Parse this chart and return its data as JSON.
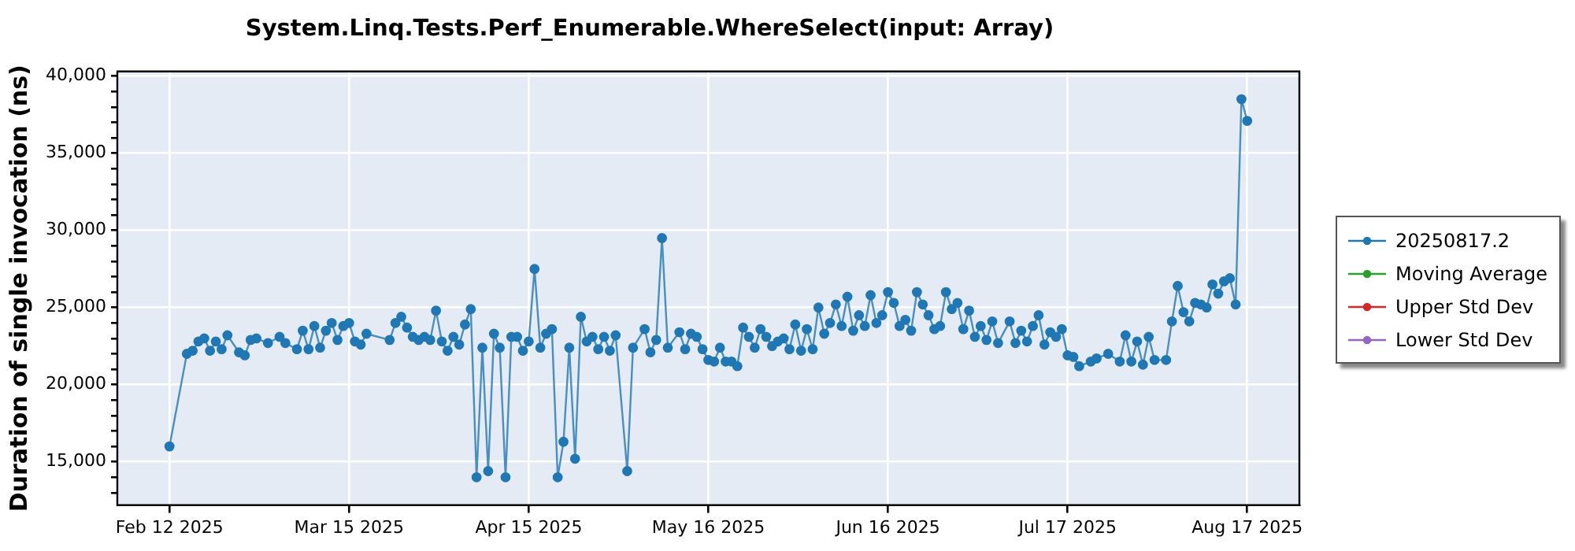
{
  "chart_data": {
    "type": "line",
    "title": "System.Linq.Tests.Perf_Enumerable.WhereSelect(input: Array)",
    "ylabel": "Duration of single invocation (ns)",
    "x": [
      "2025-02-12",
      "2025-02-15",
      "2025-02-16",
      "2025-02-17",
      "2025-02-18",
      "2025-02-19",
      "2025-02-20",
      "2025-02-21",
      "2025-02-22",
      "2025-02-24",
      "2025-02-25",
      "2025-02-26",
      "2025-02-27",
      "2025-03-01",
      "2025-03-03",
      "2025-03-04",
      "2025-03-06",
      "2025-03-07",
      "2025-03-08",
      "2025-03-09",
      "2025-03-10",
      "2025-03-11",
      "2025-03-12",
      "2025-03-13",
      "2025-03-14",
      "2025-03-15",
      "2025-03-16",
      "2025-03-17",
      "2025-03-18",
      "2025-03-22",
      "2025-03-23",
      "2025-03-24",
      "2025-03-25",
      "2025-03-26",
      "2025-03-27",
      "2025-03-28",
      "2025-03-29",
      "2025-03-30",
      "2025-03-31",
      "2025-04-01",
      "2025-04-02",
      "2025-04-03",
      "2025-04-04",
      "2025-04-05",
      "2025-04-06",
      "2025-04-07",
      "2025-04-08",
      "2025-04-09",
      "2025-04-10",
      "2025-04-11",
      "2025-04-12",
      "2025-04-13",
      "2025-04-14",
      "2025-04-15",
      "2025-04-16",
      "2025-04-17",
      "2025-04-18",
      "2025-04-19",
      "2025-04-20",
      "2025-04-21",
      "2025-04-22",
      "2025-04-23",
      "2025-04-24",
      "2025-04-25",
      "2025-04-26",
      "2025-04-27",
      "2025-04-28",
      "2025-04-29",
      "2025-04-30",
      "2025-05-02",
      "2025-05-03",
      "2025-05-05",
      "2025-05-06",
      "2025-05-07",
      "2025-05-08",
      "2025-05-09",
      "2025-05-11",
      "2025-05-12",
      "2025-05-13",
      "2025-05-14",
      "2025-05-15",
      "2025-05-16",
      "2025-05-17",
      "2025-05-18",
      "2025-05-19",
      "2025-05-20",
      "2025-05-21",
      "2025-05-22",
      "2025-05-23",
      "2025-05-24",
      "2025-05-25",
      "2025-05-26",
      "2025-05-27",
      "2025-05-28",
      "2025-05-29",
      "2025-05-30",
      "2025-05-31",
      "2025-06-01",
      "2025-06-02",
      "2025-06-03",
      "2025-06-04",
      "2025-06-05",
      "2025-06-06",
      "2025-06-07",
      "2025-06-08",
      "2025-06-09",
      "2025-06-10",
      "2025-06-11",
      "2025-06-12",
      "2025-06-13",
      "2025-06-14",
      "2025-06-15",
      "2025-06-16",
      "2025-06-17",
      "2025-06-18",
      "2025-06-19",
      "2025-06-20",
      "2025-06-21",
      "2025-06-22",
      "2025-06-23",
      "2025-06-24",
      "2025-06-25",
      "2025-06-26",
      "2025-06-27",
      "2025-06-28",
      "2025-06-29",
      "2025-06-30",
      "2025-07-01",
      "2025-07-02",
      "2025-07-03",
      "2025-07-04",
      "2025-07-05",
      "2025-07-07",
      "2025-07-08",
      "2025-07-09",
      "2025-07-10",
      "2025-07-11",
      "2025-07-12",
      "2025-07-13",
      "2025-07-14",
      "2025-07-15",
      "2025-07-16",
      "2025-07-17",
      "2025-07-18",
      "2025-07-19",
      "2025-07-21",
      "2025-07-22",
      "2025-07-24",
      "2025-07-26",
      "2025-07-27",
      "2025-07-28",
      "2025-07-29",
      "2025-07-30",
      "2025-07-31",
      "2025-08-01",
      "2025-08-03",
      "2025-08-04",
      "2025-08-05",
      "2025-08-06",
      "2025-08-07",
      "2025-08-08",
      "2025-08-09",
      "2025-08-10",
      "2025-08-11",
      "2025-08-12",
      "2025-08-13",
      "2025-08-14",
      "2025-08-15",
      "2025-08-16",
      "2025-08-17"
    ],
    "series": [
      {
        "name": "20250817.2",
        "color": "#1f77b4",
        "values": [
          16000,
          22000,
          22200,
          22800,
          23000,
          22200,
          22800,
          22300,
          23200,
          22100,
          21900,
          22900,
          23000,
          22700,
          23100,
          22700,
          22300,
          23500,
          22300,
          23800,
          22400,
          23500,
          24000,
          22900,
          23800,
          24000,
          22800,
          22600,
          23300,
          22900,
          24000,
          24400,
          23700,
          23100,
          22900,
          23100,
          22900,
          24800,
          22800,
          22200,
          23100,
          22600,
          23900,
          24900,
          14000,
          22400,
          14400,
          23300,
          22400,
          14000,
          23100,
          23100,
          22200,
          22800,
          27500,
          22400,
          23300,
          23600,
          14000,
          16300,
          22400,
          15200,
          24400,
          22800,
          23100,
          22300,
          23100,
          22200,
          23200,
          14400,
          22400,
          23600,
          22100,
          22900,
          29500,
          22400,
          23400,
          22300,
          23300,
          23100,
          22300,
          21600,
          21500,
          22400,
          21500,
          21500,
          21200,
          23700,
          23100,
          22400,
          23600,
          23100,
          22500,
          22800,
          23000,
          22300,
          23900,
          22200,
          23600,
          22300,
          25000,
          23300,
          24000,
          25200,
          23800,
          25700,
          23500,
          24500,
          23800,
          25800,
          24000,
          24500,
          26000,
          25300,
          23800,
          24200,
          23500,
          26000,
          25200,
          24500,
          23600,
          23800,
          26000,
          24900,
          25300,
          23600,
          24800,
          23100,
          23800,
          22900,
          24100,
          22700,
          24100,
          22700,
          23500,
          22800,
          23800,
          24500,
          22600,
          23400,
          23100,
          23600,
          21900,
          21800,
          21200,
          21500,
          21700,
          22000,
          21500,
          23200,
          21500,
          22800,
          21300,
          23100,
          21600,
          21600,
          24100,
          26400,
          24700,
          24100,
          25300,
          25200,
          25000,
          26500,
          25900,
          26700,
          26900,
          25200,
          38500,
          37100
        ]
      },
      {
        "name": "Moving Average",
        "color": "#2ca02c",
        "values": [
          null,
          null,
          null,
          null,
          null,
          null,
          null,
          null,
          null,
          null,
          null,
          null,
          null,
          null,
          null,
          null,
          null,
          null,
          null,
          null,
          null,
          null,
          null,
          null,
          null,
          null,
          null,
          null,
          null,
          null,
          null,
          null,
          null,
          null,
          null,
          null,
          null,
          null,
          null,
          null,
          null,
          null,
          null,
          null,
          null,
          null,
          null,
          null,
          null,
          null,
          null,
          null,
          null,
          null,
          null,
          null,
          null,
          null,
          null,
          null,
          null,
          null,
          null,
          null,
          null,
          null,
          null,
          null,
          null,
          null,
          null,
          null,
          null,
          null,
          null,
          null,
          null,
          null,
          null,
          null,
          null,
          null,
          null,
          null,
          null,
          null,
          null,
          null,
          null,
          null,
          null,
          null,
          null,
          null,
          null,
          null,
          null,
          null,
          null,
          null,
          null,
          null,
          null,
          null,
          null,
          null,
          null,
          null,
          null,
          null,
          null,
          null,
          null,
          null,
          null,
          null,
          null,
          null,
          null,
          null,
          null,
          null,
          null,
          null,
          null,
          null,
          null,
          null,
          null,
          null,
          null,
          null,
          null,
          null,
          null,
          null,
          null,
          null,
          null,
          null,
          null,
          null,
          null,
          null,
          null,
          null,
          null,
          null,
          null,
          null,
          null,
          null,
          null,
          null,
          null,
          null,
          null,
          null,
          null,
          null,
          null,
          null,
          null,
          null,
          null,
          null,
          null,
          null,
          null,
          null
        ]
      },
      {
        "name": "Upper Std Dev",
        "color": "#d62728",
        "values": [
          null,
          null,
          null,
          null,
          null,
          null,
          null,
          null,
          null,
          null,
          null,
          null,
          null,
          null,
          null,
          null,
          null,
          null,
          null,
          null,
          null,
          null,
          null,
          null,
          null,
          null,
          null,
          null,
          null,
          null,
          null,
          null,
          null,
          null,
          null,
          null,
          null,
          null,
          null,
          null,
          null,
          null,
          null,
          null,
          null,
          null,
          null,
          null,
          null,
          null,
          null,
          null,
          null,
          null,
          null,
          null,
          null,
          null,
          null,
          null,
          null,
          null,
          null,
          null,
          null,
          null,
          null,
          null,
          null,
          null,
          null,
          null,
          null,
          null,
          null,
          null,
          null,
          null,
          null,
          null,
          null,
          null,
          null,
          null,
          null,
          null,
          null,
          null,
          null,
          null,
          null,
          null,
          null,
          null,
          null,
          null,
          null,
          null,
          null,
          null,
          null,
          null,
          null,
          null,
          null,
          null,
          null,
          null,
          null,
          null,
          null,
          null,
          null,
          null,
          null,
          null,
          null,
          null,
          null,
          null,
          null,
          null,
          null,
          null,
          null,
          null,
          null,
          null,
          null,
          null,
          null,
          null,
          null,
          null,
          null,
          null,
          null,
          null,
          null,
          null,
          null,
          null,
          null,
          null,
          null,
          null,
          null,
          null,
          null,
          null,
          null,
          null,
          null,
          null,
          null,
          null,
          null,
          null,
          null,
          null,
          null,
          null,
          null,
          null,
          null,
          null,
          null,
          null,
          null,
          null
        ]
      },
      {
        "name": "Lower Std Dev",
        "color": "#9467bd",
        "values": [
          null,
          null,
          null,
          null,
          null,
          null,
          null,
          null,
          null,
          null,
          null,
          null,
          null,
          null,
          null,
          null,
          null,
          null,
          null,
          null,
          null,
          null,
          null,
          null,
          null,
          null,
          null,
          null,
          null,
          null,
          null,
          null,
          null,
          null,
          null,
          null,
          null,
          null,
          null,
          null,
          null,
          null,
          null,
          null,
          null,
          null,
          null,
          null,
          null,
          null,
          null,
          null,
          null,
          null,
          null,
          null,
          null,
          null,
          null,
          null,
          null,
          null,
          null,
          null,
          null,
          null,
          null,
          null,
          null,
          null,
          null,
          null,
          null,
          null,
          null,
          null,
          null,
          null,
          null,
          null,
          null,
          null,
          null,
          null,
          null,
          null,
          null,
          null,
          null,
          null,
          null,
          null,
          null,
          null,
          null,
          null,
          null,
          null,
          null,
          null,
          null,
          null,
          null,
          null,
          null,
          null,
          null,
          null,
          null,
          null,
          null,
          null,
          null,
          null,
          null,
          null,
          null,
          null,
          null,
          null,
          null,
          null,
          null,
          null,
          null,
          null,
          null,
          null,
          null,
          null,
          null,
          null,
          null,
          null,
          null,
          null,
          null,
          null,
          null,
          null,
          null,
          null,
          null,
          null,
          null,
          null,
          null,
          null,
          null,
          null,
          null,
          null,
          null,
          null,
          null,
          null,
          null,
          null,
          null,
          null,
          null,
          null,
          null,
          null,
          null,
          null,
          null,
          null,
          null,
          null
        ]
      }
    ],
    "xlim": [
      "2025-02-03",
      "2025-08-26"
    ],
    "xticks": [
      {
        "value": "2025-02-12",
        "label": "Feb 12 2025"
      },
      {
        "value": "2025-03-15",
        "label": "Mar 15 2025"
      },
      {
        "value": "2025-04-15",
        "label": "Apr 15 2025"
      },
      {
        "value": "2025-05-16",
        "label": "May 16 2025"
      },
      {
        "value": "2025-06-16",
        "label": "Jun 16 2025"
      },
      {
        "value": "2025-07-17",
        "label": "Jul 17 2025"
      },
      {
        "value": "2025-08-17",
        "label": "Aug 17 2025"
      }
    ],
    "ylim": [
      12200,
      40300
    ],
    "yticks": [
      {
        "value": 13000,
        "label": null
      },
      {
        "value": 14000,
        "label": null
      },
      {
        "value": 15000,
        "label": "15,000"
      },
      {
        "value": 16000,
        "label": null
      },
      {
        "value": 17000,
        "label": null
      },
      {
        "value": 18000,
        "label": null
      },
      {
        "value": 19000,
        "label": null
      },
      {
        "value": 20000,
        "label": "20,000"
      },
      {
        "value": 21000,
        "label": null
      },
      {
        "value": 22000,
        "label": null
      },
      {
        "value": 23000,
        "label": null
      },
      {
        "value": 24000,
        "label": null
      },
      {
        "value": 25000,
        "label": "25,000"
      },
      {
        "value": 26000,
        "label": null
      },
      {
        "value": 27000,
        "label": null
      },
      {
        "value": 28000,
        "label": null
      },
      {
        "value": 29000,
        "label": null
      },
      {
        "value": 30000,
        "label": "30,000"
      },
      {
        "value": 31000,
        "label": null
      },
      {
        "value": 32000,
        "label": null
      },
      {
        "value": 33000,
        "label": null
      },
      {
        "value": 34000,
        "label": null
      },
      {
        "value": 35000,
        "label": "35,000"
      },
      {
        "value": 36000,
        "label": null
      },
      {
        "value": 37000,
        "label": null
      },
      {
        "value": 38000,
        "label": null
      },
      {
        "value": 39000,
        "label": null
      },
      {
        "value": 40000,
        "label": "40,000"
      }
    ],
    "grid": true,
    "legend": "right",
    "marker": "circle",
    "line_style": "solid"
  }
}
